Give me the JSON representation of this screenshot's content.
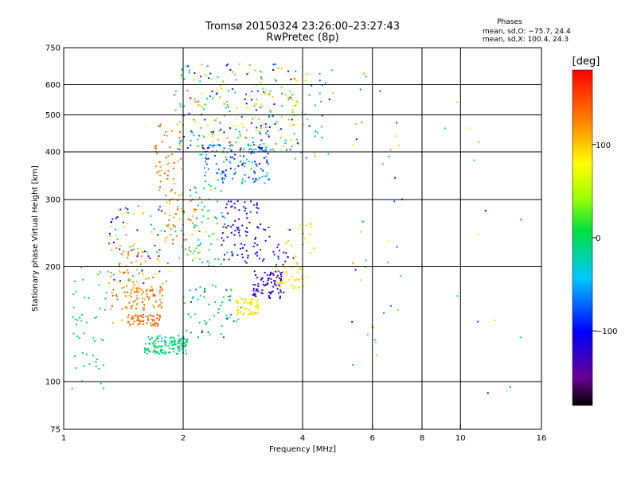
{
  "header": {
    "title_line1": "Tromsø 20150324 23:26:00–23:27:43",
    "title_line2": "RwPretec (8p)",
    "stats_title": "Phases",
    "stats_o": "mean, sd,O: −75.7, 24.4",
    "stats_x": "mean, sd,X: 100.4, 24.3"
  },
  "colorbar": {
    "label": "[deg]",
    "ticks": [
      {
        "label": "100",
        "value": 100
      },
      {
        "label": "0",
        "value": 0
      },
      {
        "label": "−100",
        "value": -100
      }
    ],
    "range": [
      -180,
      180
    ]
  },
  "chart_data": {
    "type": "scatter",
    "title": "Tromsø 20150324 23:26:00–23:27:43",
    "subtitle": "RwPretec (8p)",
    "xlabel": "Frequency [MHz]",
    "ylabel": "Stationary phase Virtual Height [km]",
    "x_scale": "log",
    "y_scale": "log",
    "xlim": [
      1,
      16
    ],
    "ylim": [
      75,
      750
    ],
    "x_ticks": [
      {
        "value": 1,
        "label": "1"
      },
      {
        "value": 2,
        "label": "2"
      },
      {
        "value": 4,
        "label": "4"
      },
      {
        "value": 6,
        "label": "6"
      },
      {
        "value": 8,
        "label": "8"
      },
      {
        "value": 10,
        "label": "10"
      },
      {
        "value": 16,
        "label": "16"
      }
    ],
    "y_ticks": [
      {
        "value": 75,
        "label": "75"
      },
      {
        "value": 100,
        "label": "100"
      },
      {
        "value": 200,
        "label": "200"
      },
      {
        "value": 300,
        "label": "300"
      },
      {
        "value": 400,
        "label": "400"
      },
      {
        "value": 500,
        "label": "500"
      },
      {
        "value": 600,
        "label": "600"
      },
      {
        "value": 750,
        "label": "750"
      }
    ],
    "grid_x": [
      2,
      4,
      6,
      8,
      10
    ],
    "grid_y": [
      100,
      200,
      300,
      400,
      500,
      600
    ],
    "color_variable": "phase [deg]",
    "color_range": [
      -180,
      180
    ],
    "clusters": [
      {
        "x": [
          1.6,
          2.05
        ],
        "y": [
          118,
          132
        ],
        "phase": [
          -20,
          5
        ],
        "count": 140
      },
      {
        "x": [
          1.45,
          1.75
        ],
        "y": [
          140,
          150
        ],
        "phase": [
          125,
          150
        ],
        "count": 60
      },
      {
        "x": [
          1.4,
          1.8
        ],
        "y": [
          155,
          180
        ],
        "phase": [
          110,
          150
        ],
        "count": 60
      },
      {
        "x": [
          1.05,
          1.3
        ],
        "y": [
          95,
          200
        ],
        "phase": [
          -20,
          15
        ],
        "count": 50
      },
      {
        "x": [
          1.3,
          1.6
        ],
        "y": [
          140,
          230
        ],
        "phase": [
          100,
          150
        ],
        "count": 60
      },
      {
        "x": [
          1.3,
          1.85
        ],
        "y": [
          180,
          290
        ],
        "phase": [
          -140,
          140
        ],
        "count": 90
      },
      {
        "x": [
          2.0,
          2.8
        ],
        "y": [
          130,
          180
        ],
        "phase": [
          -90,
          30
        ],
        "count": 60
      },
      {
        "x": [
          2.7,
          3.1
        ],
        "y": [
          150,
          165
        ],
        "phase": [
          80,
          100
        ],
        "count": 60
      },
      {
        "x": [
          3.0,
          3.6
        ],
        "y": [
          165,
          195
        ],
        "phase": [
          -140,
          -100
        ],
        "count": 80
      },
      {
        "x": [
          3.4,
          4.1
        ],
        "y": [
          175,
          200
        ],
        "phase": [
          80,
          100
        ],
        "count": 40
      },
      {
        "x": [
          3.6,
          4.4
        ],
        "y": [
          200,
          260
        ],
        "phase": [
          70,
          110
        ],
        "count": 25
      },
      {
        "x": [
          2.2,
          3.3
        ],
        "y": [
          330,
          420
        ],
        "phase": [
          -120,
          -10
        ],
        "count": 140
      },
      {
        "x": [
          2.5,
          3.1
        ],
        "y": [
          210,
          300
        ],
        "phase": [
          -130,
          -80
        ],
        "count": 60
      },
      {
        "x": [
          1.9,
          2.6
        ],
        "y": [
          200,
          330
        ],
        "phase": [
          -60,
          60
        ],
        "count": 80
      },
      {
        "x": [
          2.5,
          3.8
        ],
        "y": [
          200,
          260
        ],
        "phase": [
          -130,
          -80
        ],
        "count": 50
      },
      {
        "x": [
          1.7,
          2.0
        ],
        "y": [
          300,
          480
        ],
        "phase": [
          100,
          150
        ],
        "count": 50
      },
      {
        "x": [
          1.9,
          3.9
        ],
        "y": [
          400,
          680
        ],
        "phase": [
          -130,
          140
        ],
        "count": 260
      },
      {
        "x": [
          1.8,
          2.2
        ],
        "y": [
          220,
          310
        ],
        "phase": [
          100,
          150
        ],
        "count": 40
      },
      {
        "x": [
          3.8,
          4.8
        ],
        "y": [
          380,
          660
        ],
        "phase": [
          -100,
          140
        ],
        "count": 40
      },
      {
        "x": [
          5.3,
          7.2
        ],
        "y": [
          110,
          660
        ],
        "phase": [
          -140,
          150
        ],
        "count": 40
      },
      {
        "x": [
          9.0,
          14.5
        ],
        "y": [
          80,
          610
        ],
        "phase": [
          -140,
          120
        ],
        "count": 15
      }
    ]
  }
}
